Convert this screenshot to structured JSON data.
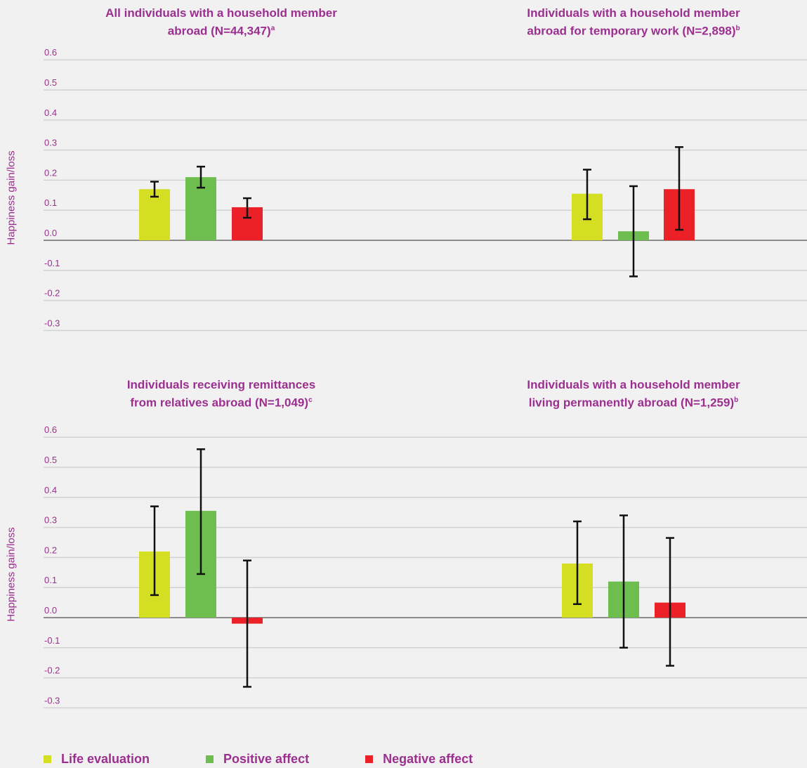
{
  "chart_data": [
    {
      "type": "bar",
      "title": "All individuals with a household member abroad (N=44,347)",
      "title_line1": "All individuals with a household member",
      "title_line2": "abroad (N=44,347)",
      "title_sup": "a",
      "ylabel": "Happiness gain/loss",
      "ylim": [
        -0.3,
        0.6
      ],
      "yticks": [
        "0.6",
        "0.5",
        "0.4",
        "0.3",
        "0.2",
        "0.1",
        "0.0",
        "-0.1",
        "-0.2",
        "-0.3"
      ],
      "series": [
        {
          "name": "Life evaluation",
          "value": 0.17,
          "ci": [
            0.145,
            0.195
          ]
        },
        {
          "name": "Positive affect",
          "value": 0.21,
          "ci": [
            0.175,
            0.245
          ]
        },
        {
          "name": "Negative affect",
          "value": 0.11,
          "ci": [
            0.075,
            0.14
          ]
        }
      ]
    },
    {
      "type": "bar",
      "title": "Individuals with a household member abroad for temporary work (N=2,898)",
      "title_line1": "Individuals with a household member",
      "title_line2": "abroad for temporary work (N=2,898)",
      "title_sup": "b",
      "ylabel": "",
      "ylim": [
        -0.3,
        0.6
      ],
      "yticks": [],
      "series": [
        {
          "name": "Life evaluation",
          "value": 0.155,
          "ci": [
            0.07,
            0.235
          ]
        },
        {
          "name": "Positive affect",
          "value": 0.03,
          "ci": [
            -0.12,
            0.18
          ]
        },
        {
          "name": "Negative affect",
          "value": 0.17,
          "ci": [
            0.035,
            0.31
          ]
        }
      ]
    },
    {
      "type": "bar",
      "title": "Individuals receiving remittances from relatives abroad (N=1,049)",
      "title_line1": "Individuals receiving remittances",
      "title_line2": "from relatives abroad (N=1,049)",
      "title_sup": "c",
      "ylabel": "Happiness gain/loss",
      "ylim": [
        -0.3,
        0.6
      ],
      "yticks": [
        "0.6",
        "0.5",
        "0.4",
        "0.3",
        "0.2",
        "0.1",
        "0.0",
        "-0.1",
        "-0.2",
        "-0.3"
      ],
      "series": [
        {
          "name": "Life evaluation",
          "value": 0.22,
          "ci": [
            0.075,
            0.37
          ]
        },
        {
          "name": "Positive affect",
          "value": 0.355,
          "ci": [
            0.145,
            0.56
          ]
        },
        {
          "name": "Negative affect",
          "value": -0.02,
          "ci": [
            -0.23,
            0.19
          ]
        }
      ]
    },
    {
      "type": "bar",
      "title": "Individuals with a household member living permanently abroad (N=1,259)",
      "title_line1": "Individuals with a household member",
      "title_line2": "living permanently abroad (N=1,259)",
      "title_sup": "b",
      "ylabel": "",
      "ylim": [
        -0.3,
        0.6
      ],
      "yticks": [],
      "series": [
        {
          "name": "Life evaluation",
          "value": 0.18,
          "ci": [
            0.045,
            0.32
          ]
        },
        {
          "name": "Positive affect",
          "value": 0.12,
          "ci": [
            -0.1,
            0.34
          ]
        },
        {
          "name": "Negative affect",
          "value": 0.05,
          "ci": [
            -0.16,
            0.265
          ]
        }
      ]
    }
  ],
  "legend": [
    {
      "label": "Life evaluation",
      "color": "#d4df23"
    },
    {
      "label": "Positive affect",
      "color": "#6dbe4f"
    },
    {
      "label": "Negative affect",
      "color": "#ec2027"
    }
  ],
  "colors": {
    "title": "#9b2f8f",
    "gridline": "#d2d2d2",
    "zero_line": "#8c8c8c",
    "error_bar": "#111111"
  }
}
